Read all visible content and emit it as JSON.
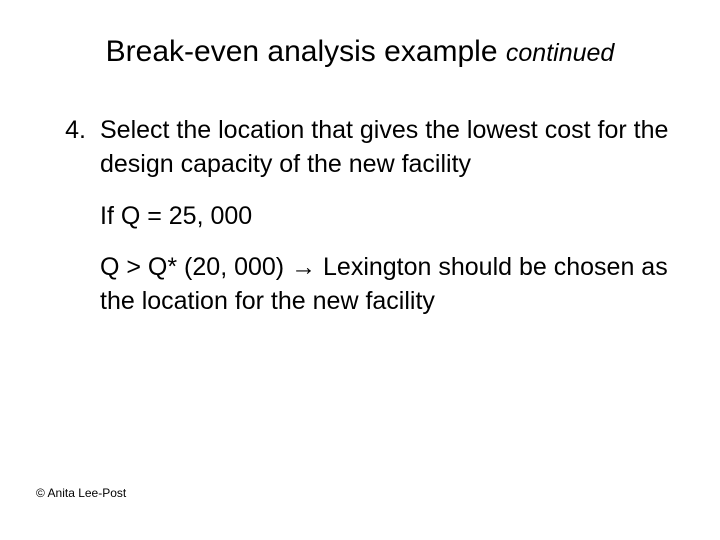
{
  "title": {
    "main": "Break-even analysis example",
    "continued": "continued",
    "fontsize_main": 30,
    "fontsize_continued": 25
  },
  "list": {
    "number": "4.",
    "text": "Select the location that gives the lowest cost for the design capacity of the new facility"
  },
  "line2": "If Q = 25, 000",
  "line3": "Q > Q* (20, 000) → Lexington should be chosen as the location for the new facility",
  "copyright": "© Anita Lee-Post",
  "colors": {
    "background": "#ffffff",
    "text": "#000000"
  },
  "body_fontsize": 25
}
